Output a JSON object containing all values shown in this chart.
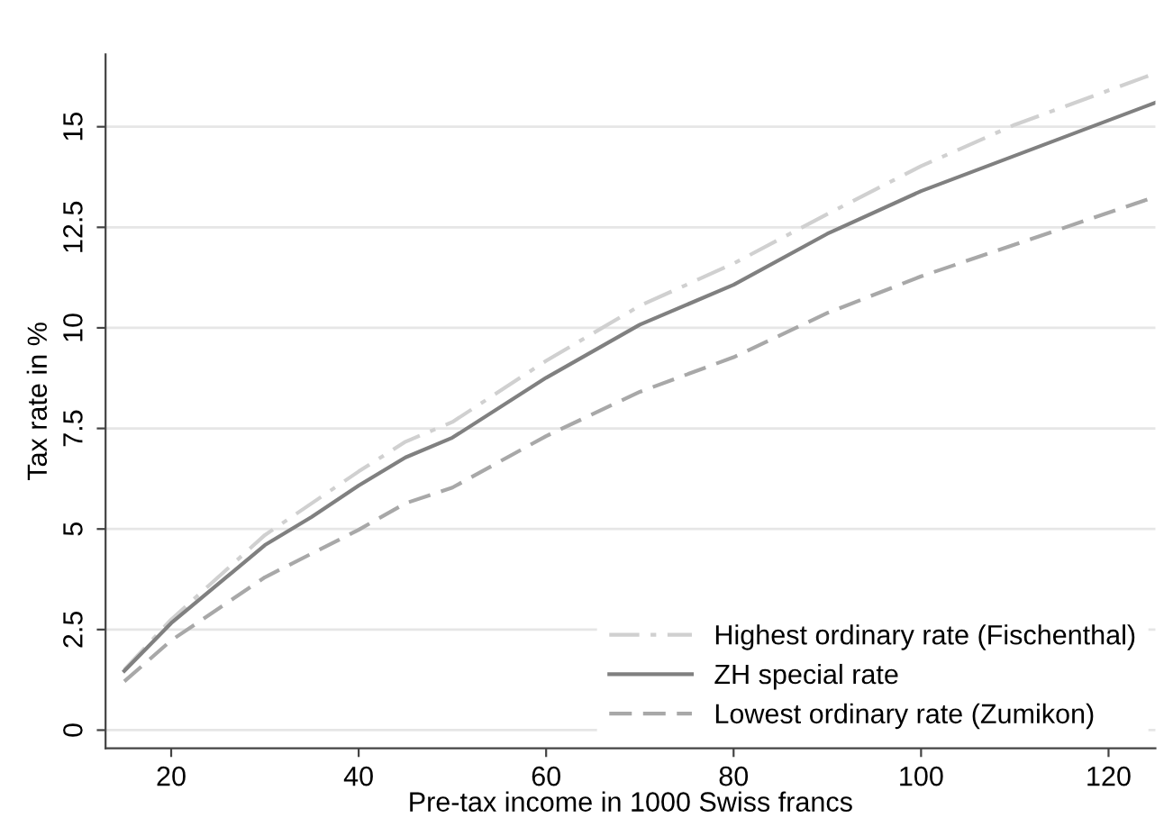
{
  "chart_data": {
    "type": "line",
    "xlabel": "Pre-tax income in 1000 Swiss francs",
    "ylabel": "Tax rate in %",
    "xlim": [
      13,
      125
    ],
    "xticks": [
      20,
      40,
      60,
      80,
      100,
      120
    ],
    "ylim": [
      -0.45,
      16.8
    ],
    "yticks": [
      0,
      2.5,
      5,
      7.5,
      10,
      12.5,
      15
    ],
    "grid": "y",
    "legend": "bottom right",
    "marker": "none",
    "series": [
      {
        "name": "Highest ordinary rate (Fischenthal)",
        "color": "#d0d0d0",
        "line_style": "dashdot",
        "x": [
          15,
          20,
          30,
          40,
          45,
          50,
          60,
          70,
          80,
          90,
          100,
          110,
          125
        ],
        "values": [
          1.5,
          2.75,
          4.85,
          6.43,
          7.17,
          7.66,
          9.18,
          10.55,
          11.6,
          12.83,
          14.02,
          15.05,
          16.33
        ]
      },
      {
        "name": "ZH special rate",
        "color": "#808080",
        "line_style": "solid",
        "x": [
          15,
          20,
          30,
          35,
          40,
          45,
          50,
          60,
          70,
          80,
          90,
          100,
          125
        ],
        "values": [
          1.47,
          2.66,
          4.6,
          5.3,
          6.08,
          6.78,
          7.27,
          8.76,
          10.08,
          11.07,
          12.34,
          13.4,
          15.6
        ]
      },
      {
        "name": "Lowest ordinary rate (Zumikon)",
        "color": "#a8a8a8",
        "line_style": "dashed",
        "x": [
          15,
          20,
          30,
          40,
          45,
          50,
          60,
          70,
          80,
          90,
          100,
          125
        ],
        "values": [
          1.21,
          2.23,
          3.8,
          4.98,
          5.64,
          6.03,
          7.31,
          8.41,
          9.27,
          10.37,
          11.28,
          13.26
        ]
      }
    ]
  }
}
